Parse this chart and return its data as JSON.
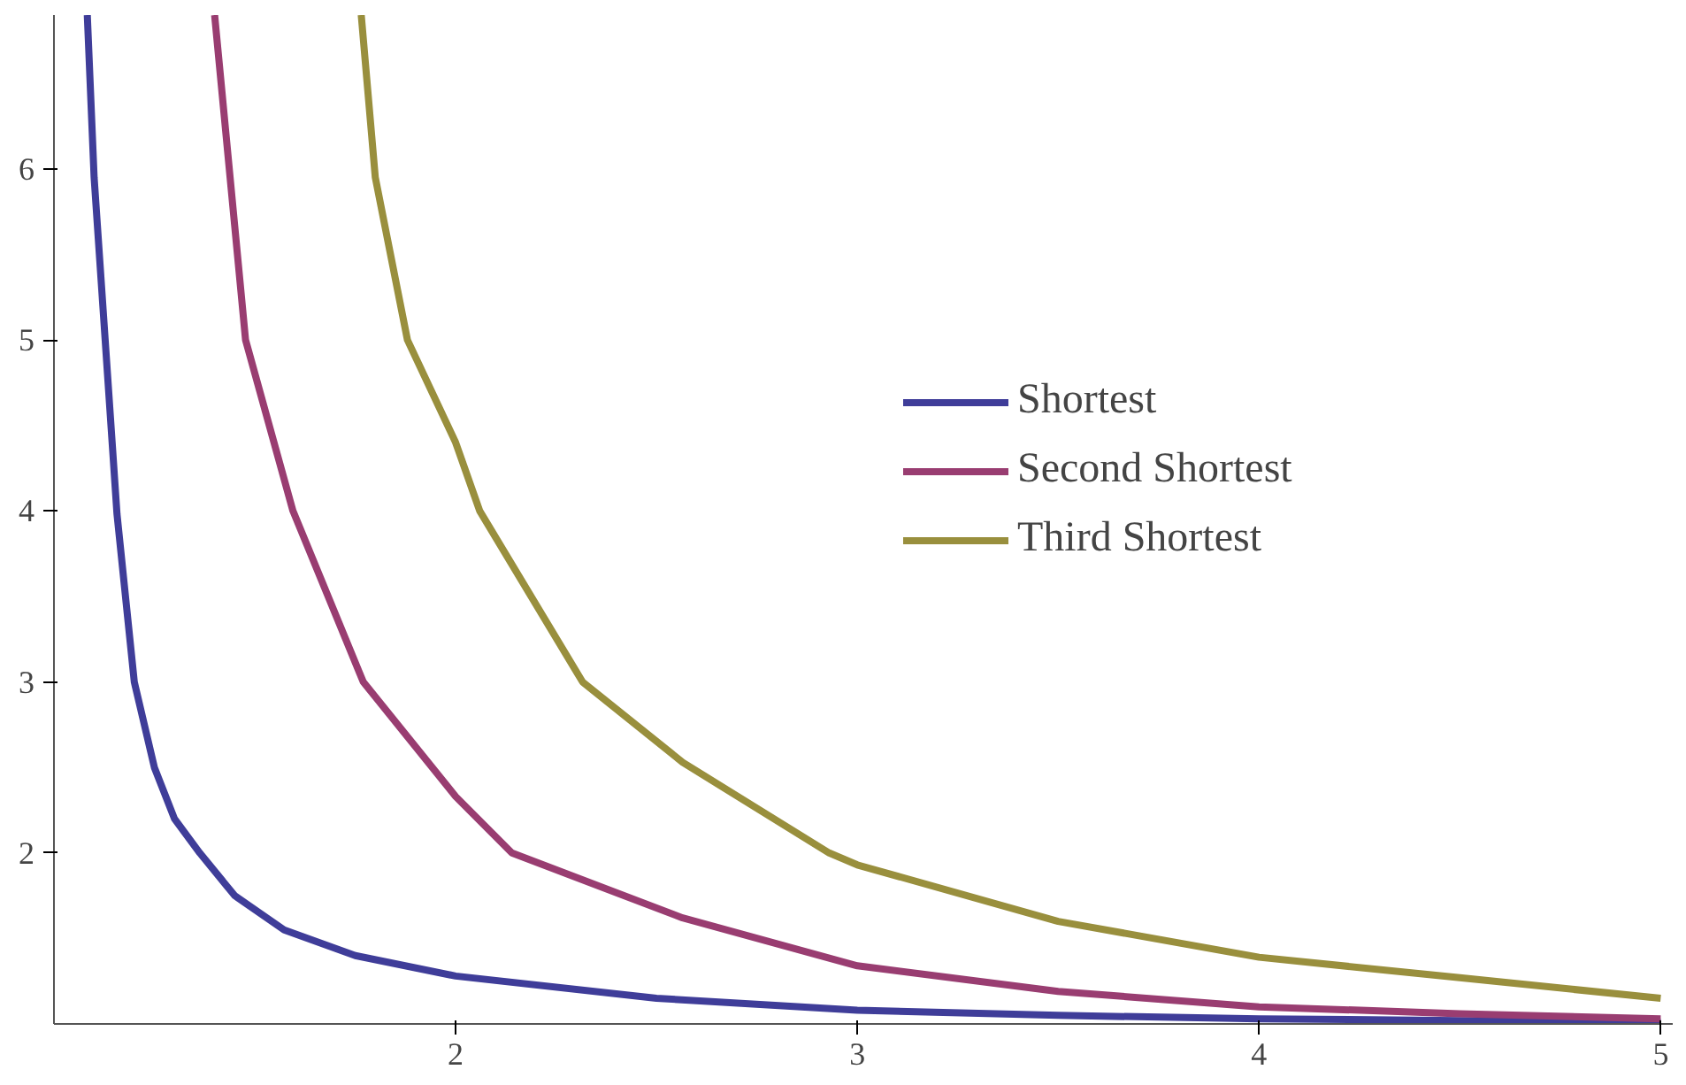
{
  "chart_data": {
    "type": "line",
    "xlim": [
      1,
      5.03
    ],
    "ylim": [
      1,
      6.9
    ],
    "xticks": [
      2,
      3,
      4,
      5
    ],
    "yticks": [
      2,
      3,
      4,
      5,
      6
    ],
    "grid": false,
    "legend": "top right",
    "marker": "none",
    "line_style": "solid",
    "series": [
      {
        "name": "Shortest",
        "color": "#3f3d99",
        "x": [
          1.083,
          1.1,
          1.157,
          1.2,
          1.25,
          1.3,
          1.363,
          1.45,
          1.573,
          1.75,
          2,
          2.5,
          3,
          3.5,
          4,
          4.5,
          5
        ],
        "values": [
          6.9,
          5.95,
          3.98,
          3.0,
          2.5,
          2.2,
          2.0,
          1.75,
          1.55,
          1.4,
          1.28,
          1.15,
          1.08,
          1.05,
          1.03,
          1.02,
          1.01
        ]
      },
      {
        "name": "Second Shortest",
        "color": "#993d71",
        "x": [
          1.4,
          1.477,
          1.595,
          1.77,
          2.0,
          2.14,
          2.565,
          3,
          3.5,
          4,
          4.5,
          5
        ],
        "values": [
          6.9,
          5.0,
          4.0,
          3.0,
          2.33,
          2.0,
          1.62,
          1.34,
          1.19,
          1.1,
          1.06,
          1.03
        ]
      },
      {
        "name": "Third Shortest",
        "color": "#998f3d",
        "x": [
          1.765,
          1.8,
          1.88,
          2.0,
          2.06,
          2.316,
          2.565,
          2.93,
          3,
          3.5,
          4,
          4.5,
          5
        ],
        "values": [
          6.9,
          5.95,
          5.0,
          4.4,
          4.0,
          3.0,
          2.53,
          2.0,
          1.93,
          1.6,
          1.39,
          1.27,
          1.15
        ]
      }
    ]
  }
}
